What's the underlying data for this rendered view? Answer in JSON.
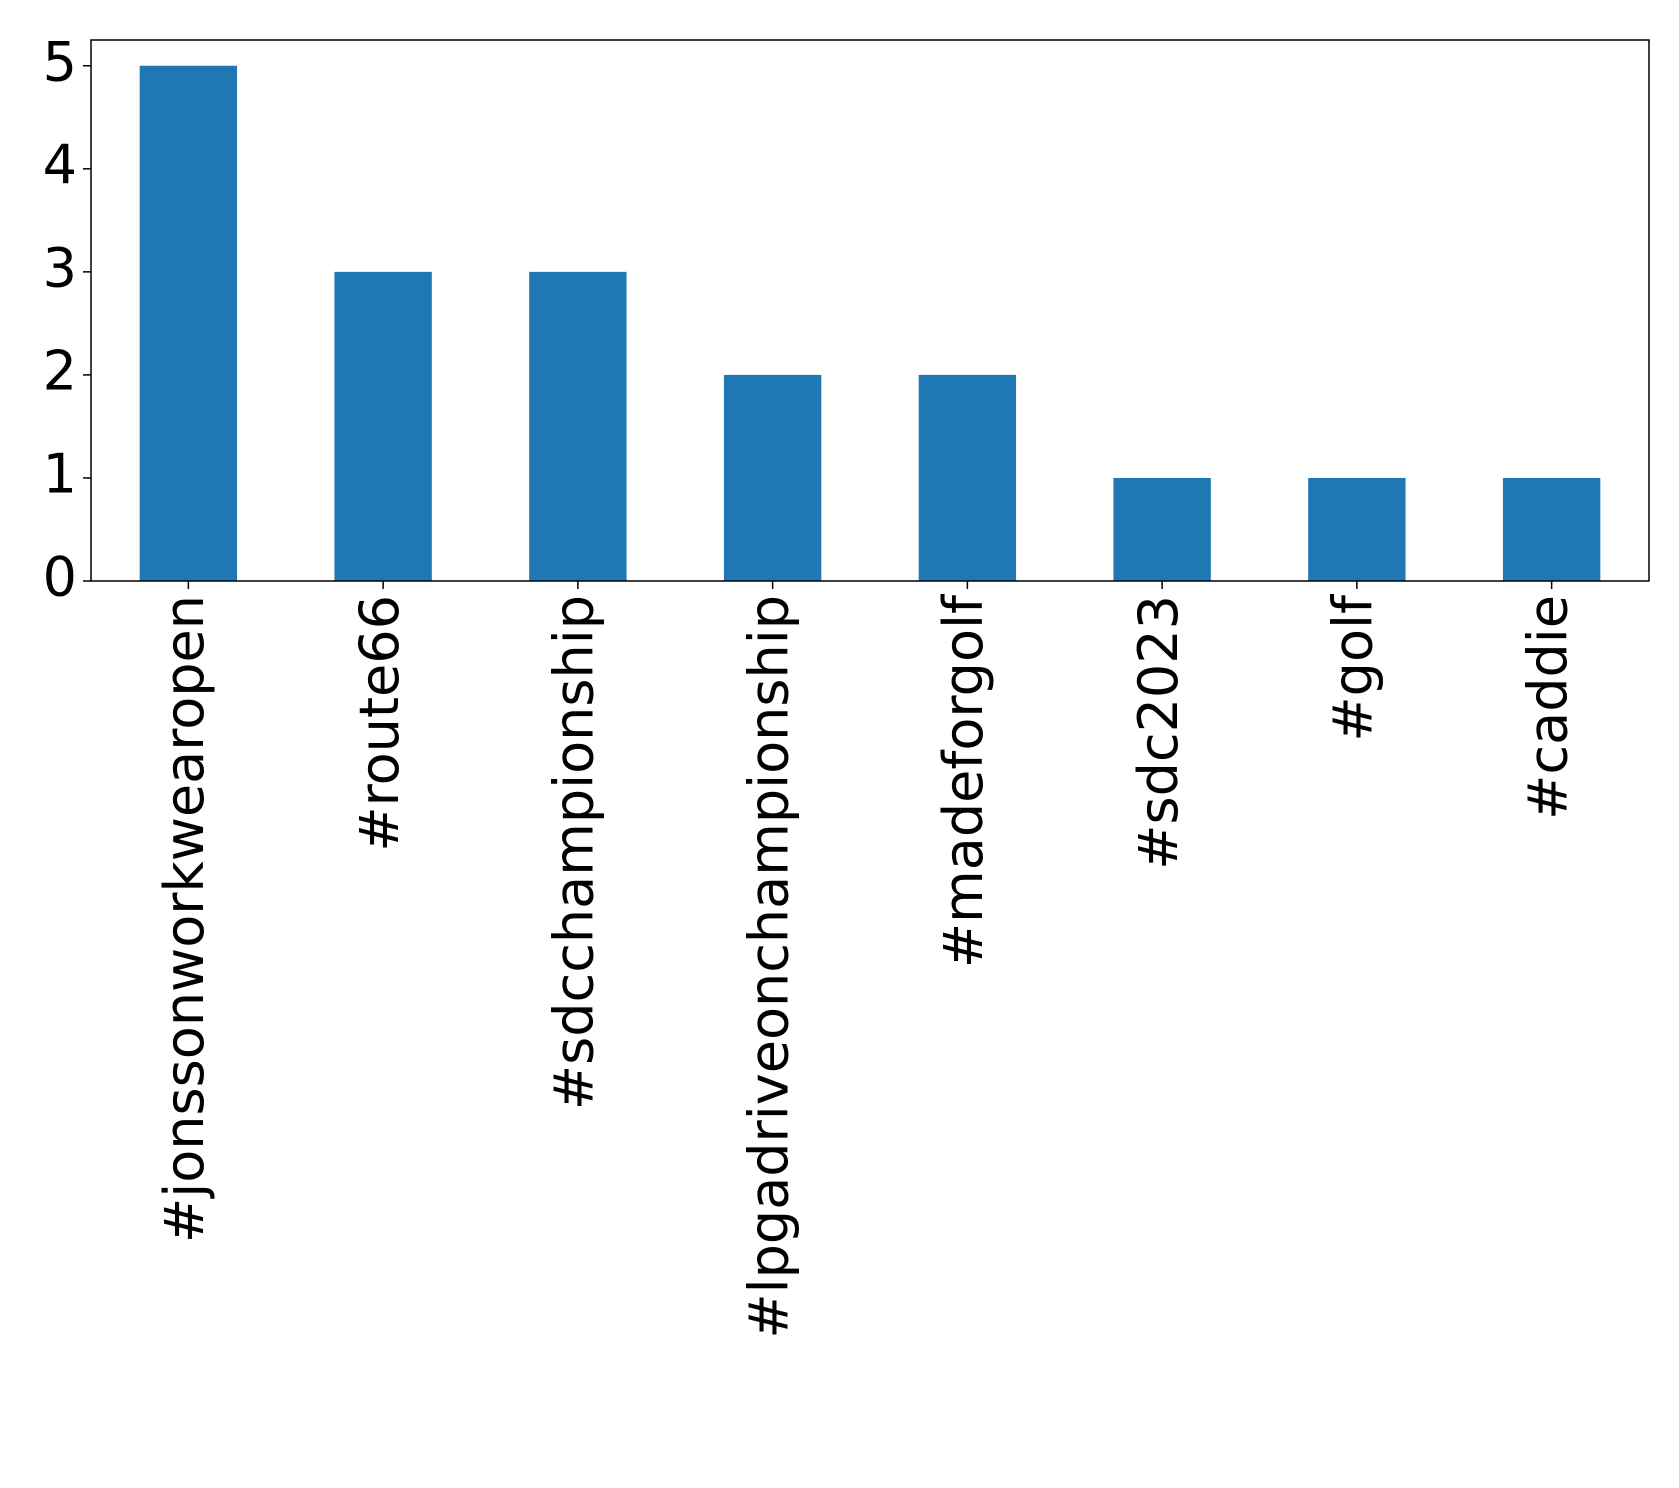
{
  "chart_data": {
    "type": "bar",
    "categories": [
      "#jonssonworkwearopen",
      "#route66",
      "#sdcchampionship",
      "#lpgadriveonchampionship",
      "#madeforgolf",
      "#sdc2023",
      "#golf",
      "#caddie"
    ],
    "values": [
      5,
      3,
      3,
      2,
      2,
      1,
      1,
      1
    ],
    "color": "#1f77b4",
    "ylim": [
      0,
      5.25
    ],
    "yticks": [
      0,
      1,
      2,
      3,
      4,
      5
    ],
    "grid": false
  }
}
